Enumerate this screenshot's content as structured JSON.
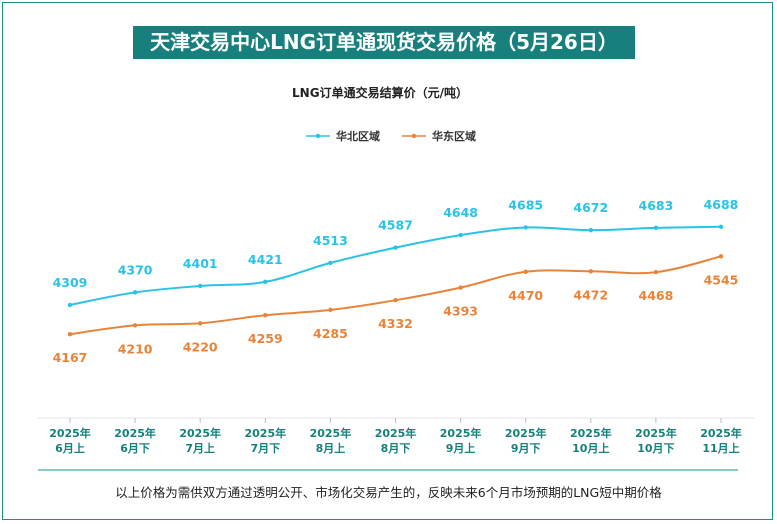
{
  "header": {
    "title": "天津交易中心LNG订单通现货交易价格（5月26日）"
  },
  "footer": {
    "note": "以上价格为需供双方通过透明公开、市场化交易产生的，反映未来6个月市场预期的LNG短中期价格"
  },
  "colors": {
    "frame": "#17918a",
    "title_bg": "#17807c",
    "north": "#29c3e6",
    "east": "#e8843a",
    "axis_text": "#17807c"
  },
  "chart_data": {
    "type": "line",
    "title": "LNG订单通交易结算价（元/吨）",
    "categories": [
      [
        "2025年",
        "6月上"
      ],
      [
        "2025年",
        "6月下"
      ],
      [
        "2025年",
        "7月上"
      ],
      [
        "2025年",
        "7月下"
      ],
      [
        "2025年",
        "8月上"
      ],
      [
        "2025年",
        "8月下"
      ],
      [
        "2025年",
        "9月上"
      ],
      [
        "2025年",
        "9月下"
      ],
      [
        "2025年",
        "10月上"
      ],
      [
        "2025年",
        "10月下"
      ],
      [
        "2025年",
        "11月上"
      ]
    ],
    "series": [
      {
        "name": "华北区域",
        "color": "#29c3e6",
        "label_position": "above",
        "values": [
          4309,
          4370,
          4401,
          4421,
          4513,
          4587,
          4648,
          4685,
          4672,
          4683,
          4688
        ]
      },
      {
        "name": "华东区域",
        "color": "#e8843a",
        "label_position": "below",
        "values": [
          4167,
          4210,
          4220,
          4259,
          4285,
          4332,
          4393,
          4470,
          4472,
          4468,
          4545
        ]
      }
    ],
    "legend": "top-center",
    "grid": false,
    "smooth": true
  }
}
